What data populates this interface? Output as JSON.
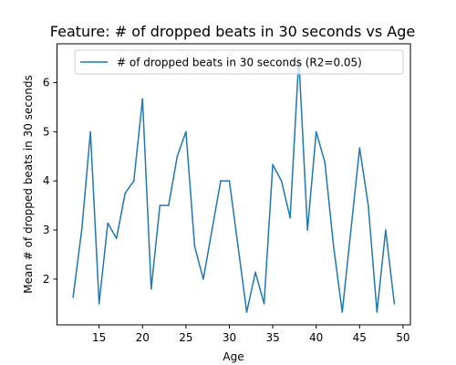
{
  "chart_data": {
    "type": "line",
    "title": "Feature: # of dropped beats in 30 seconds vs Age",
    "xlabel": "Age",
    "ylabel": "Mean # of dropped beats in 30 seconds",
    "xlim": [
      10.15,
      50.85
    ],
    "ylim": [
      1.07,
      6.79
    ],
    "xticks": [
      15,
      20,
      25,
      30,
      35,
      40,
      45,
      50
    ],
    "yticks": [
      2,
      3,
      4,
      5,
      6
    ],
    "grid": false,
    "legend_position": "top-right",
    "series": [
      {
        "name": "# of dropped beats in 30 seconds (R2=0.05)",
        "color": "#1f77b4",
        "x": [
          12,
          13,
          14,
          15,
          16,
          17,
          18,
          19,
          20,
          21,
          22,
          23,
          24,
          25,
          26,
          27,
          28,
          29,
          30,
          31,
          32,
          33,
          34,
          35,
          36,
          37,
          38,
          39,
          40,
          41,
          42,
          43,
          44,
          45,
          46,
          47,
          48,
          49
        ],
        "values": [
          1.63,
          3.0,
          5.0,
          1.5,
          3.14,
          2.83,
          3.75,
          4.0,
          5.67,
          1.8,
          3.5,
          3.5,
          4.5,
          5.0,
          2.67,
          2.0,
          3.0,
          4.0,
          4.0,
          2.67,
          1.33,
          2.14,
          1.5,
          4.33,
          4.0,
          3.25,
          6.5,
          3.0,
          5.0,
          4.38,
          2.67,
          1.33,
          3.0,
          4.67,
          3.5,
          1.33,
          3.0,
          1.5
        ]
      }
    ]
  }
}
